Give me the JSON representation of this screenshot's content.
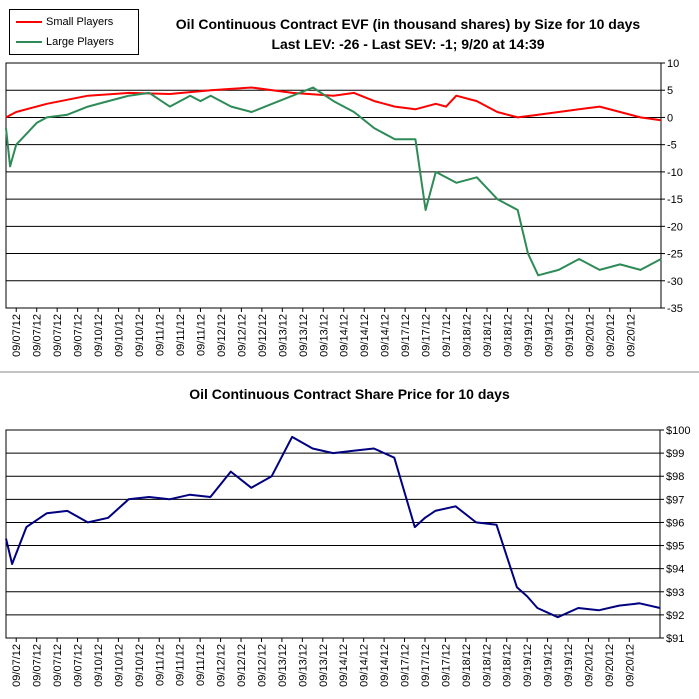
{
  "chart_data": [
    {
      "type": "line",
      "title": "Oil Continuous Contract EVF (in thousand shares) by Size for 10 days",
      "subtitle": "Last LEV: -26 - Last SEV: -1; 9/20 at 14:39",
      "ylim": [
        -35,
        10
      ],
      "yticks": [
        "10",
        "5",
        "0",
        "-5",
        "-10",
        "-15",
        "-20",
        "-25",
        "-30",
        "-35"
      ],
      "grid": true,
      "legend": "top-left",
      "xtick_labels": [
        "09/07/12",
        "09/07/12",
        "09/07/12",
        "09/07/12",
        "09/10/12",
        "09/10/12",
        "09/10/12",
        "09/11/12",
        "09/11/12",
        "09/11/12",
        "09/12/12",
        "09/12/12",
        "09/12/12",
        "09/13/12",
        "09/13/12",
        "09/13/12",
        "09/14/12",
        "09/14/12",
        "09/14/12",
        "09/17/12",
        "09/17/12",
        "09/17/12",
        "09/18/12",
        "09/18/12",
        "09/18/12",
        "09/19/12",
        "09/19/12",
        "09/19/12",
        "09/20/12",
        "09/20/12",
        "09/20/12"
      ],
      "series": [
        {
          "name": "Small Players",
          "color": "#ff0000",
          "x": [
            0,
            0.5,
            2,
            4,
            6,
            8,
            10,
            12,
            14,
            16,
            17,
            18,
            19,
            20,
            21,
            21.5,
            22,
            23,
            24,
            25,
            26,
            27,
            28,
            29,
            30,
            31,
            32
          ],
          "values": [
            0,
            1,
            2.5,
            4,
            4.5,
            4.3,
            5,
            5.5,
            4.5,
            4,
            4.5,
            3,
            2,
            1.5,
            2.5,
            2,
            4,
            3,
            1,
            0,
            0.5,
            1,
            1.5,
            2,
            1,
            0,
            -0.5
          ]
        },
        {
          "name": "Large Players",
          "color": "#2e8b57",
          "x": [
            0,
            0.2,
            0.5,
            1,
            1.5,
            2,
            3,
            4,
            5,
            6,
            7,
            8,
            9,
            9.5,
            10,
            11,
            12,
            13,
            14,
            15,
            16,
            17,
            18,
            19,
            20,
            20.5,
            21,
            22,
            23,
            24,
            25,
            25.5,
            26,
            27,
            28,
            29,
            30,
            31,
            32
          ],
          "values": [
            -2,
            -9,
            -5,
            -3,
            -1,
            0,
            0.5,
            2,
            3,
            4,
            4.5,
            2,
            4,
            3,
            4,
            2,
            1,
            2.5,
            4,
            5.5,
            3,
            1,
            -2,
            -4,
            -4,
            -17,
            -10,
            -12,
            -11,
            -15,
            -17,
            -25,
            -29,
            -28,
            -26,
            -28,
            -27,
            -28,
            -26
          ]
        }
      ]
    },
    {
      "type": "line",
      "title": "Oil Continuous Contract Share Price for 10 days",
      "ylim": [
        91,
        100
      ],
      "yticks": [
        "$100",
        "$99",
        "$98",
        "$97",
        "$96",
        "$95",
        "$94",
        "$93",
        "$92",
        "$91"
      ],
      "grid": true,
      "xtick_labels": [
        "09/07/12",
        "09/07/12",
        "09/07/12",
        "09/07/12",
        "09/10/12",
        "09/10/12",
        "09/10/12",
        "09/11/12",
        "09/11/12",
        "09/11/12",
        "09/12/12",
        "09/12/12",
        "09/12/12",
        "09/13/12",
        "09/13/12",
        "09/13/12",
        "09/14/12",
        "09/14/12",
        "09/14/12",
        "09/17/12",
        "09/17/12",
        "09/17/12",
        "09/18/12",
        "09/18/12",
        "09/18/12",
        "09/19/12",
        "09/19/12",
        "09/19/12",
        "09/20/12",
        "09/20/12",
        "09/20/12"
      ],
      "series": [
        {
          "color": "#000080",
          "x": [
            0,
            0.3,
            1,
            2,
            3,
            4,
            5,
            6,
            7,
            8,
            9,
            10,
            11,
            12,
            13,
            14,
            15,
            16,
            17,
            18,
            19,
            20,
            20.5,
            21,
            22,
            23,
            24,
            25,
            25.5,
            26,
            27,
            28,
            29,
            30,
            31,
            32
          ],
          "values": [
            95.3,
            94.2,
            95.8,
            96.4,
            96.5,
            96,
            96.2,
            97,
            97.1,
            97,
            97.2,
            97.1,
            98.2,
            97.5,
            98,
            99.7,
            99.2,
            99,
            99.1,
            99.2,
            98.8,
            95.8,
            96.2,
            96.5,
            96.7,
            96,
            95.9,
            93.2,
            92.8,
            92.3,
            91.9,
            92.3,
            92.2,
            92.4,
            92.5,
            92.3
          ]
        }
      ]
    }
  ]
}
